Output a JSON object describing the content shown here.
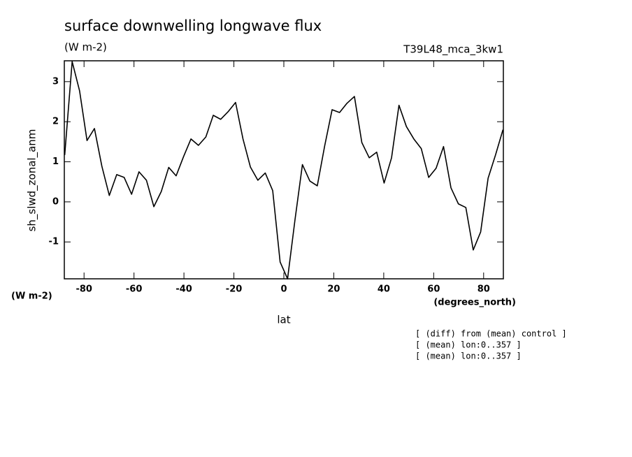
{
  "chart_data": {
    "type": "line",
    "title": "surface downwelling longwave flux",
    "subtitle": "(W m-2)",
    "run_label": "T39L48_mca_3kw1",
    "y_label": "sh_slwd_zonal_anm",
    "y_units": "(W m-2)",
    "x_label": "lat",
    "x_units": "(degrees_north)",
    "annotations": [
      "[ (diff) from (mean) control ]",
      "[ (mean) lon:0..357 ]",
      "[ (mean) lon:0..357 ]"
    ],
    "x": [
      -87.74,
      -84.76,
      -81.79,
      -78.81,
      -75.84,
      -72.87,
      -69.89,
      -66.92,
      -63.94,
      -60.97,
      -58.0,
      -55.02,
      -52.05,
      -49.07,
      -46.1,
      -43.13,
      -40.15,
      -37.18,
      -34.2,
      -31.23,
      -28.26,
      -25.28,
      -22.31,
      -19.33,
      -16.36,
      -13.39,
      -10.41,
      -7.44,
      -4.46,
      -1.49,
      1.49,
      4.46,
      7.44,
      10.41,
      13.39,
      16.36,
      19.33,
      22.31,
      25.28,
      28.26,
      31.23,
      34.2,
      37.18,
      40.15,
      43.13,
      46.1,
      49.07,
      52.05,
      55.02,
      58.0,
      60.97,
      63.94,
      66.92,
      69.89,
      72.87,
      75.84,
      78.81,
      81.79,
      84.76,
      87.74
    ],
    "series": [
      {
        "name": "sh_slwd_zonal_anm",
        "color": "#000000",
        "values": [
          1.17,
          3.5,
          2.77,
          1.53,
          1.83,
          0.89,
          0.16,
          0.68,
          0.61,
          0.19,
          0.75,
          0.54,
          -0.12,
          0.26,
          0.86,
          0.65,
          1.13,
          1.57,
          1.41,
          1.62,
          2.16,
          2.06,
          2.25,
          2.48,
          1.57,
          0.87,
          0.54,
          0.72,
          0.28,
          -1.5,
          -1.92,
          -0.45,
          0.93,
          0.52,
          0.4,
          1.4,
          2.3,
          2.23,
          2.46,
          2.63,
          1.48,
          1.1,
          1.24,
          0.47,
          1.1,
          2.41,
          1.88,
          1.57,
          1.33,
          0.61,
          0.84,
          1.38,
          0.35,
          -0.05,
          -0.14,
          -1.2,
          -0.75,
          0.59,
          1.17,
          1.8
        ]
      }
    ],
    "xlim": [
      -87.9,
      87.9
    ],
    "xticks": [
      -80,
      -60,
      -40,
      -20,
      0,
      20,
      40,
      60,
      80
    ],
    "ylim": [
      -1.92,
      3.52
    ],
    "yticks": [
      -1,
      0,
      1,
      2,
      3
    ],
    "grid": false
  }
}
